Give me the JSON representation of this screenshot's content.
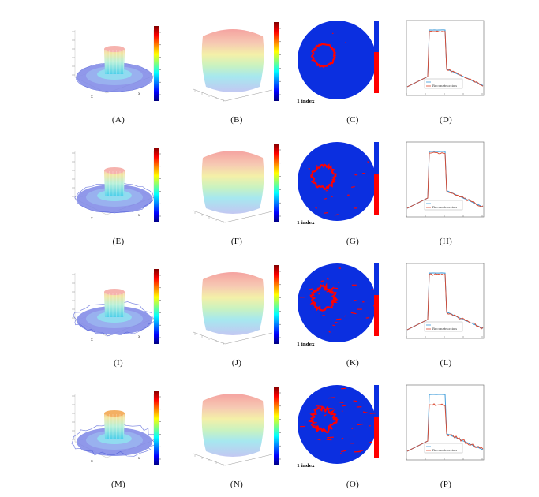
{
  "rows": [
    {
      "captions": [
        "(A)",
        "(B)",
        "(C)",
        "(D)"
      ]
    },
    {
      "captions": [
        "(E)",
        "(F)",
        "(G)",
        "(H)"
      ]
    },
    {
      "captions": [
        "(I)",
        "(J)",
        "(K)",
        "(L)"
      ]
    },
    {
      "captions": [
        "(M)",
        "(N)",
        "(O)",
        "(P)"
      ]
    }
  ],
  "colorbar_colors": [
    "#00007f",
    "#0000ff",
    "#007fff",
    "#00ffff",
    "#7fff7f",
    "#ffff00",
    "#ff7f00",
    "#ff0000",
    "#7f0000"
  ],
  "disc_color": "#0b2fe0",
  "contour_color": "#ff0000",
  "profile_colors": {
    "true": "#3a9ad9",
    "reconstruction": "#d9452b"
  },
  "legend_text": "Reconstruction",
  "index_label": "1 index"
}
